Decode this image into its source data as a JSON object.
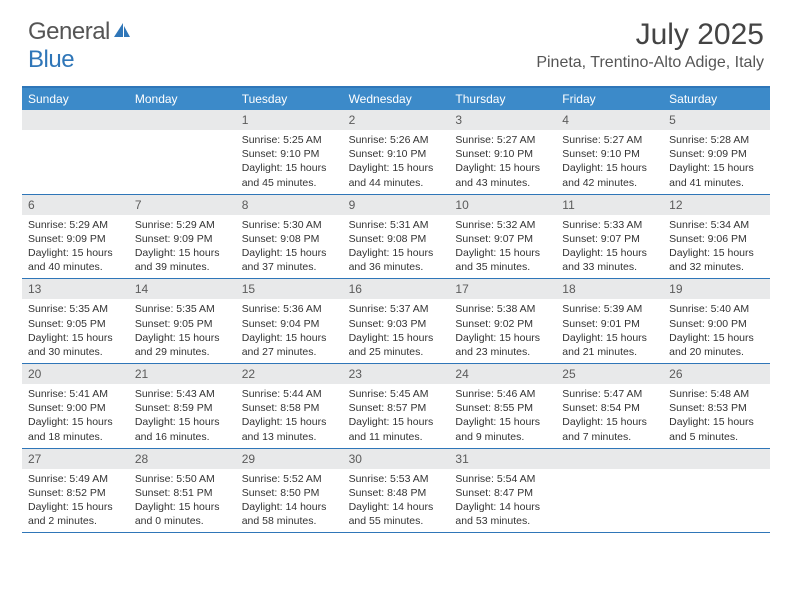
{
  "brand": {
    "part1": "General",
    "part2": "Blue"
  },
  "title": "July 2025",
  "location": "Pineta, Trentino-Alto Adige, Italy",
  "accent_color": "#3c8ac9",
  "border_color": "#2f76b8",
  "daynum_bg": "#e8e9ea",
  "dayNames": [
    "Sunday",
    "Monday",
    "Tuesday",
    "Wednesday",
    "Thursday",
    "Friday",
    "Saturday"
  ],
  "weeks": [
    [
      null,
      null,
      {
        "n": "1",
        "sr": "5:25 AM",
        "ss": "9:10 PM",
        "dl": "15 hours and 45 minutes."
      },
      {
        "n": "2",
        "sr": "5:26 AM",
        "ss": "9:10 PM",
        "dl": "15 hours and 44 minutes."
      },
      {
        "n": "3",
        "sr": "5:27 AM",
        "ss": "9:10 PM",
        "dl": "15 hours and 43 minutes."
      },
      {
        "n": "4",
        "sr": "5:27 AM",
        "ss": "9:10 PM",
        "dl": "15 hours and 42 minutes."
      },
      {
        "n": "5",
        "sr": "5:28 AM",
        "ss": "9:09 PM",
        "dl": "15 hours and 41 minutes."
      }
    ],
    [
      {
        "n": "6",
        "sr": "5:29 AM",
        "ss": "9:09 PM",
        "dl": "15 hours and 40 minutes."
      },
      {
        "n": "7",
        "sr": "5:29 AM",
        "ss": "9:09 PM",
        "dl": "15 hours and 39 minutes."
      },
      {
        "n": "8",
        "sr": "5:30 AM",
        "ss": "9:08 PM",
        "dl": "15 hours and 37 minutes."
      },
      {
        "n": "9",
        "sr": "5:31 AM",
        "ss": "9:08 PM",
        "dl": "15 hours and 36 minutes."
      },
      {
        "n": "10",
        "sr": "5:32 AM",
        "ss": "9:07 PM",
        "dl": "15 hours and 35 minutes."
      },
      {
        "n": "11",
        "sr": "5:33 AM",
        "ss": "9:07 PM",
        "dl": "15 hours and 33 minutes."
      },
      {
        "n": "12",
        "sr": "5:34 AM",
        "ss": "9:06 PM",
        "dl": "15 hours and 32 minutes."
      }
    ],
    [
      {
        "n": "13",
        "sr": "5:35 AM",
        "ss": "9:05 PM",
        "dl": "15 hours and 30 minutes."
      },
      {
        "n": "14",
        "sr": "5:35 AM",
        "ss": "9:05 PM",
        "dl": "15 hours and 29 minutes."
      },
      {
        "n": "15",
        "sr": "5:36 AM",
        "ss": "9:04 PM",
        "dl": "15 hours and 27 minutes."
      },
      {
        "n": "16",
        "sr": "5:37 AM",
        "ss": "9:03 PM",
        "dl": "15 hours and 25 minutes."
      },
      {
        "n": "17",
        "sr": "5:38 AM",
        "ss": "9:02 PM",
        "dl": "15 hours and 23 minutes."
      },
      {
        "n": "18",
        "sr": "5:39 AM",
        "ss": "9:01 PM",
        "dl": "15 hours and 21 minutes."
      },
      {
        "n": "19",
        "sr": "5:40 AM",
        "ss": "9:00 PM",
        "dl": "15 hours and 20 minutes."
      }
    ],
    [
      {
        "n": "20",
        "sr": "5:41 AM",
        "ss": "9:00 PM",
        "dl": "15 hours and 18 minutes."
      },
      {
        "n": "21",
        "sr": "5:43 AM",
        "ss": "8:59 PM",
        "dl": "15 hours and 16 minutes."
      },
      {
        "n": "22",
        "sr": "5:44 AM",
        "ss": "8:58 PM",
        "dl": "15 hours and 13 minutes."
      },
      {
        "n": "23",
        "sr": "5:45 AM",
        "ss": "8:57 PM",
        "dl": "15 hours and 11 minutes."
      },
      {
        "n": "24",
        "sr": "5:46 AM",
        "ss": "8:55 PM",
        "dl": "15 hours and 9 minutes."
      },
      {
        "n": "25",
        "sr": "5:47 AM",
        "ss": "8:54 PM",
        "dl": "15 hours and 7 minutes."
      },
      {
        "n": "26",
        "sr": "5:48 AM",
        "ss": "8:53 PM",
        "dl": "15 hours and 5 minutes."
      }
    ],
    [
      {
        "n": "27",
        "sr": "5:49 AM",
        "ss": "8:52 PM",
        "dl": "15 hours and 2 minutes."
      },
      {
        "n": "28",
        "sr": "5:50 AM",
        "ss": "8:51 PM",
        "dl": "15 hours and 0 minutes."
      },
      {
        "n": "29",
        "sr": "5:52 AM",
        "ss": "8:50 PM",
        "dl": "14 hours and 58 minutes."
      },
      {
        "n": "30",
        "sr": "5:53 AM",
        "ss": "8:48 PM",
        "dl": "14 hours and 55 minutes."
      },
      {
        "n": "31",
        "sr": "5:54 AM",
        "ss": "8:47 PM",
        "dl": "14 hours and 53 minutes."
      },
      null,
      null
    ]
  ],
  "labels": {
    "sunrise": "Sunrise:",
    "sunset": "Sunset:",
    "daylight": "Daylight:"
  }
}
